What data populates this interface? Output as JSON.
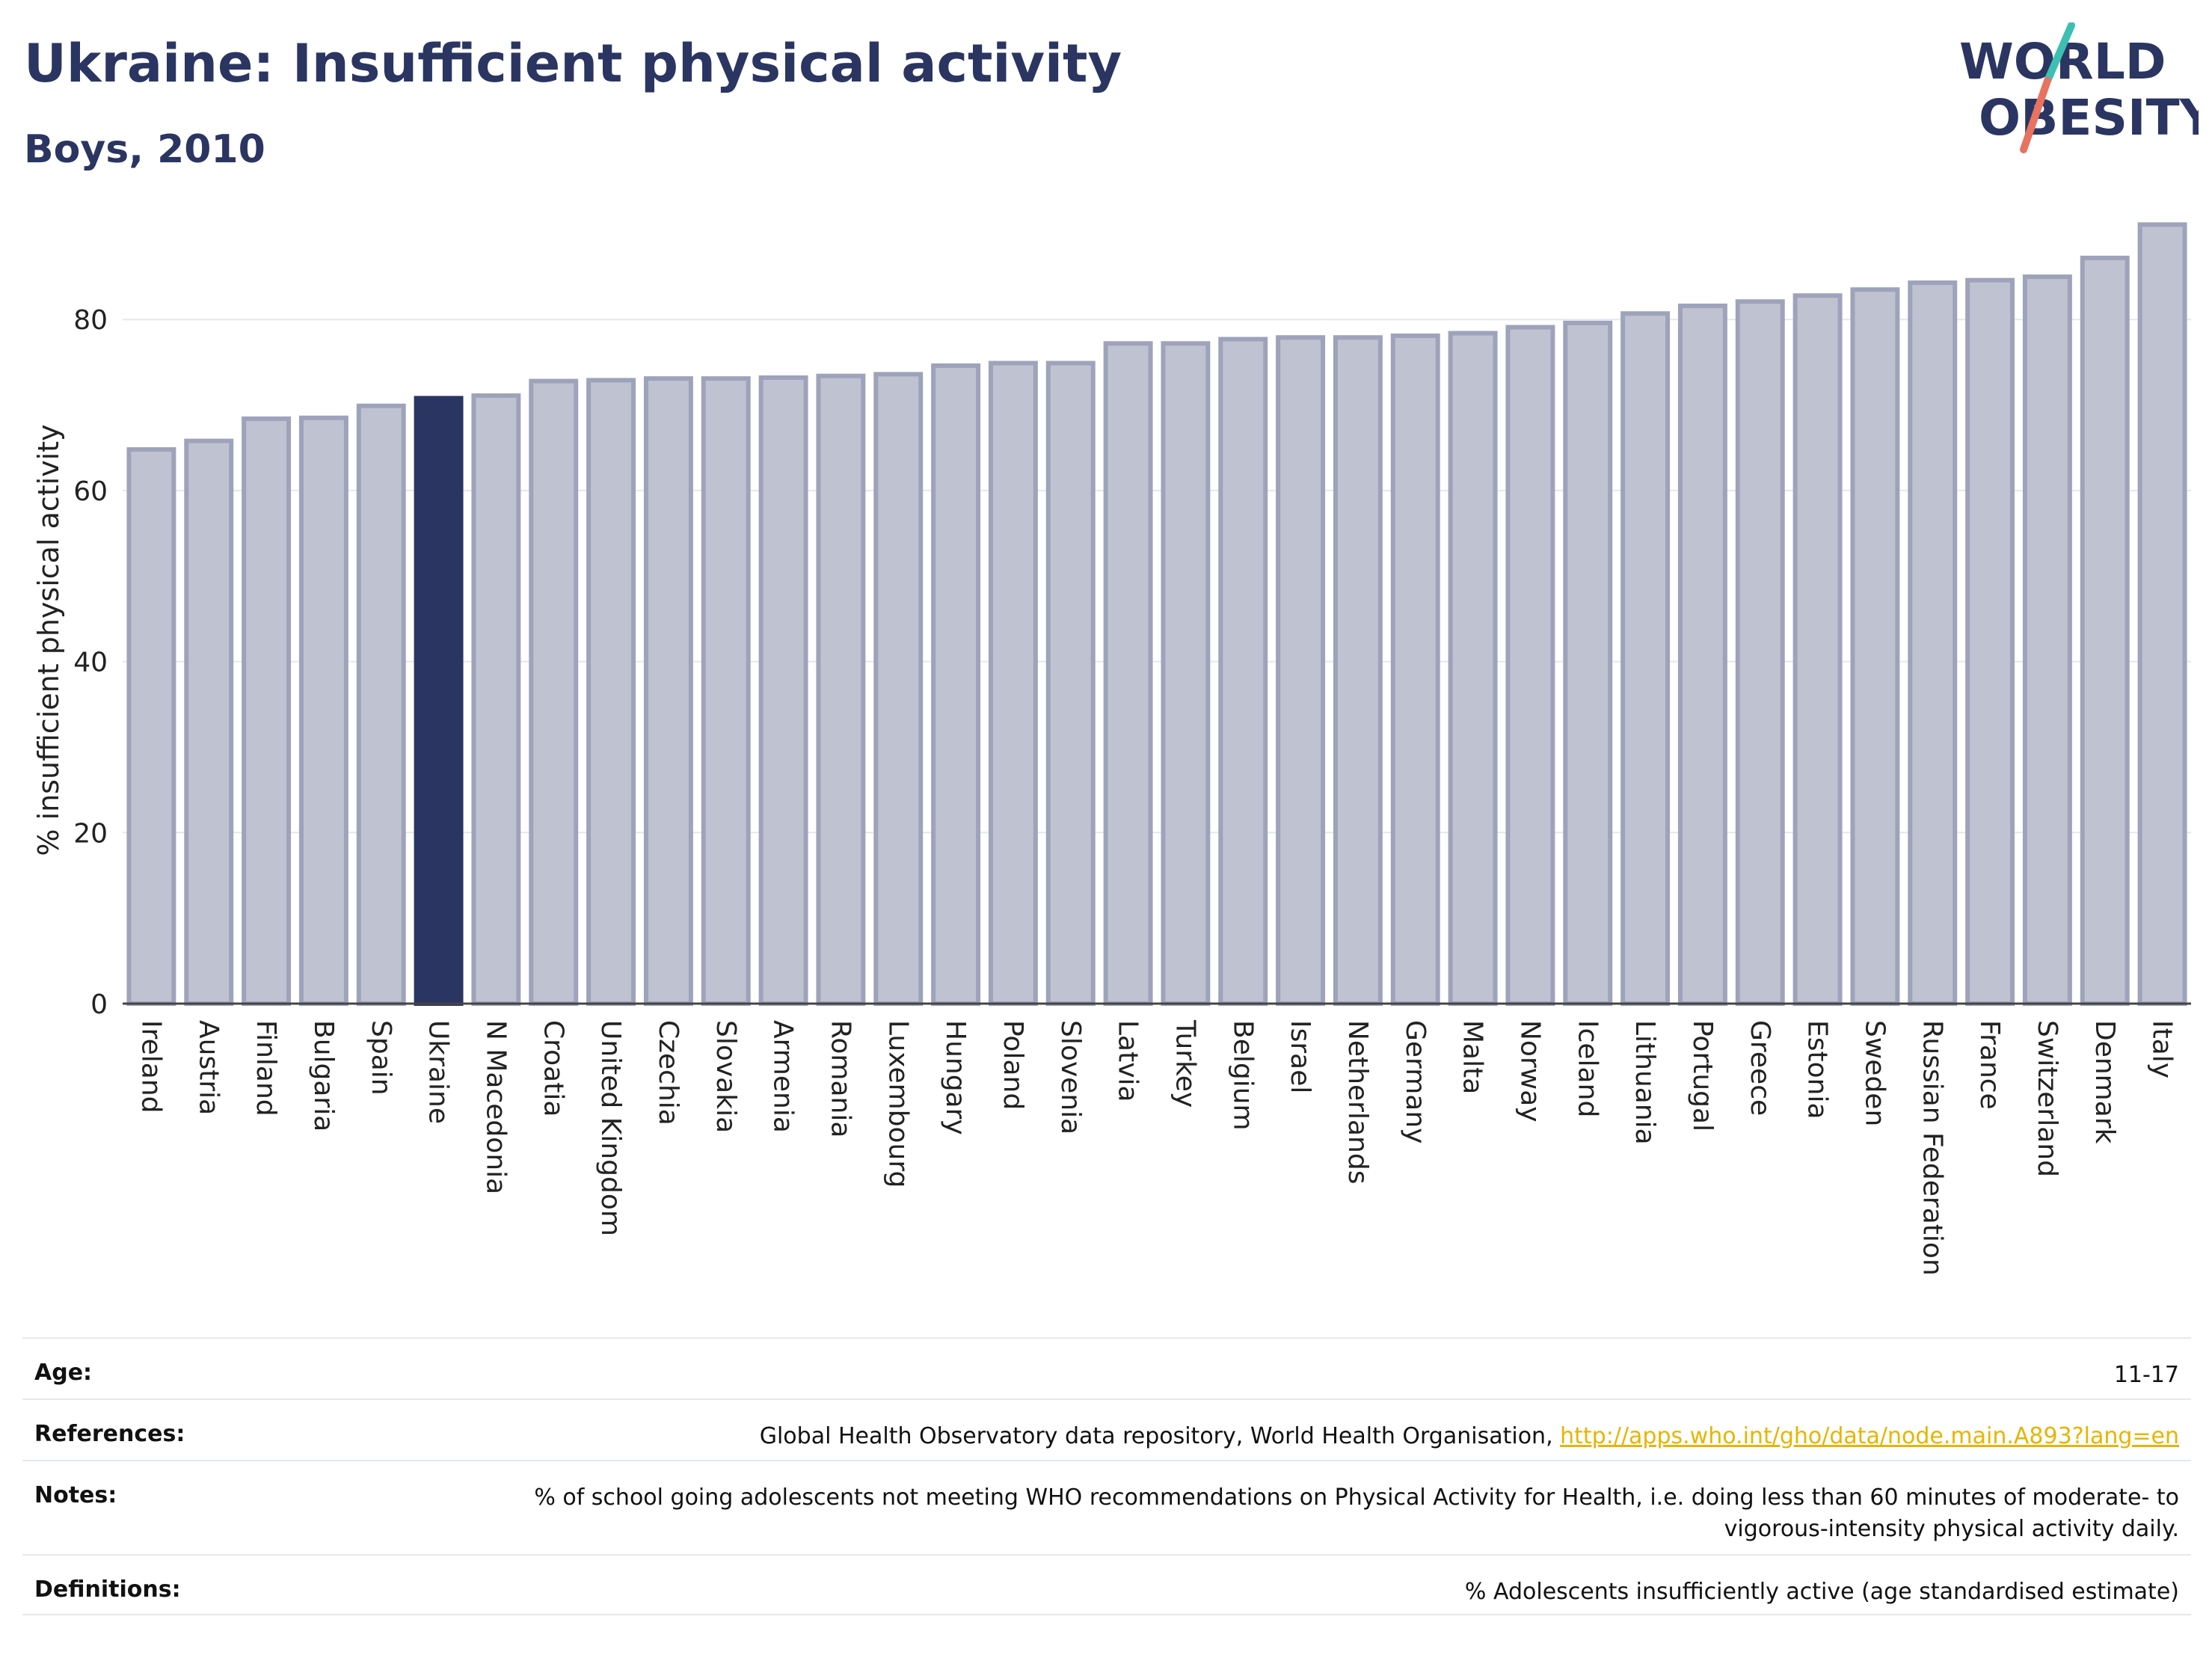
{
  "header": {
    "title": "Ukraine: Insufficient physical activity",
    "subtitle": "Boys, 2010"
  },
  "logo": {
    "line1": "WORLD",
    "line2": "OBESITY"
  },
  "colors": {
    "highlight": "#2b3562",
    "bar_fill": "#bfc2d0",
    "bar_edge": "#9ea3bb",
    "title": "#2b3562",
    "link": "#e8b400"
  },
  "chart_data": {
    "type": "bar",
    "ylabel": "% insufficient physical activity",
    "ylim": [
      0,
      92
    ],
    "yticks": [
      0,
      20,
      40,
      60,
      80
    ],
    "highlight": "Ukraine",
    "grid": true,
    "categories": [
      "Ireland",
      "Austria",
      "Finland",
      "Bulgaria",
      "Spain",
      "Ukraine",
      "N Macedonia",
      "Croatia",
      "United Kingdom",
      "Czechia",
      "Slovakia",
      "Armenia",
      "Romania",
      "Luxembourg",
      "Hungary",
      "Poland",
      "Slovenia",
      "Latvia",
      "Turkey",
      "Belgium",
      "Israel",
      "Netherlands",
      "Germany",
      "Malta",
      "Norway",
      "Iceland",
      "Lithuania",
      "Portugal",
      "Greece",
      "Estonia",
      "Sweden",
      "Russian Federation",
      "France",
      "Switzerland",
      "Denmark",
      "Italy"
    ],
    "values": [
      64.8,
      65.8,
      68.4,
      68.5,
      69.9,
      70.8,
      71.1,
      72.8,
      72.9,
      73.1,
      73.1,
      73.2,
      73.4,
      73.6,
      74.6,
      74.9,
      74.9,
      77.2,
      77.2,
      77.7,
      77.9,
      77.9,
      78.1,
      78.4,
      79.1,
      79.6,
      80.7,
      81.6,
      82.1,
      82.8,
      83.5,
      84.3,
      84.6,
      85.0,
      87.2,
      91.1
    ]
  },
  "meta": [
    {
      "label": "Age:",
      "value": "11-17"
    },
    {
      "label": "References:",
      "value": "Global Health Observatory data repository, World Health Organisation, ",
      "link": "http://apps.who.int/gho/data/node.main.A893?lang=en"
    },
    {
      "label": "Notes:",
      "value": "% of school going adolescents not meeting WHO recommendations on Physical Activity for Health, i.e. doing less than 60 minutes of moderate- to vigorous-intensity physical activity daily."
    },
    {
      "label": "Definitions:",
      "value": "% Adolescents insufficiently active (age standardised estimate)"
    }
  ]
}
